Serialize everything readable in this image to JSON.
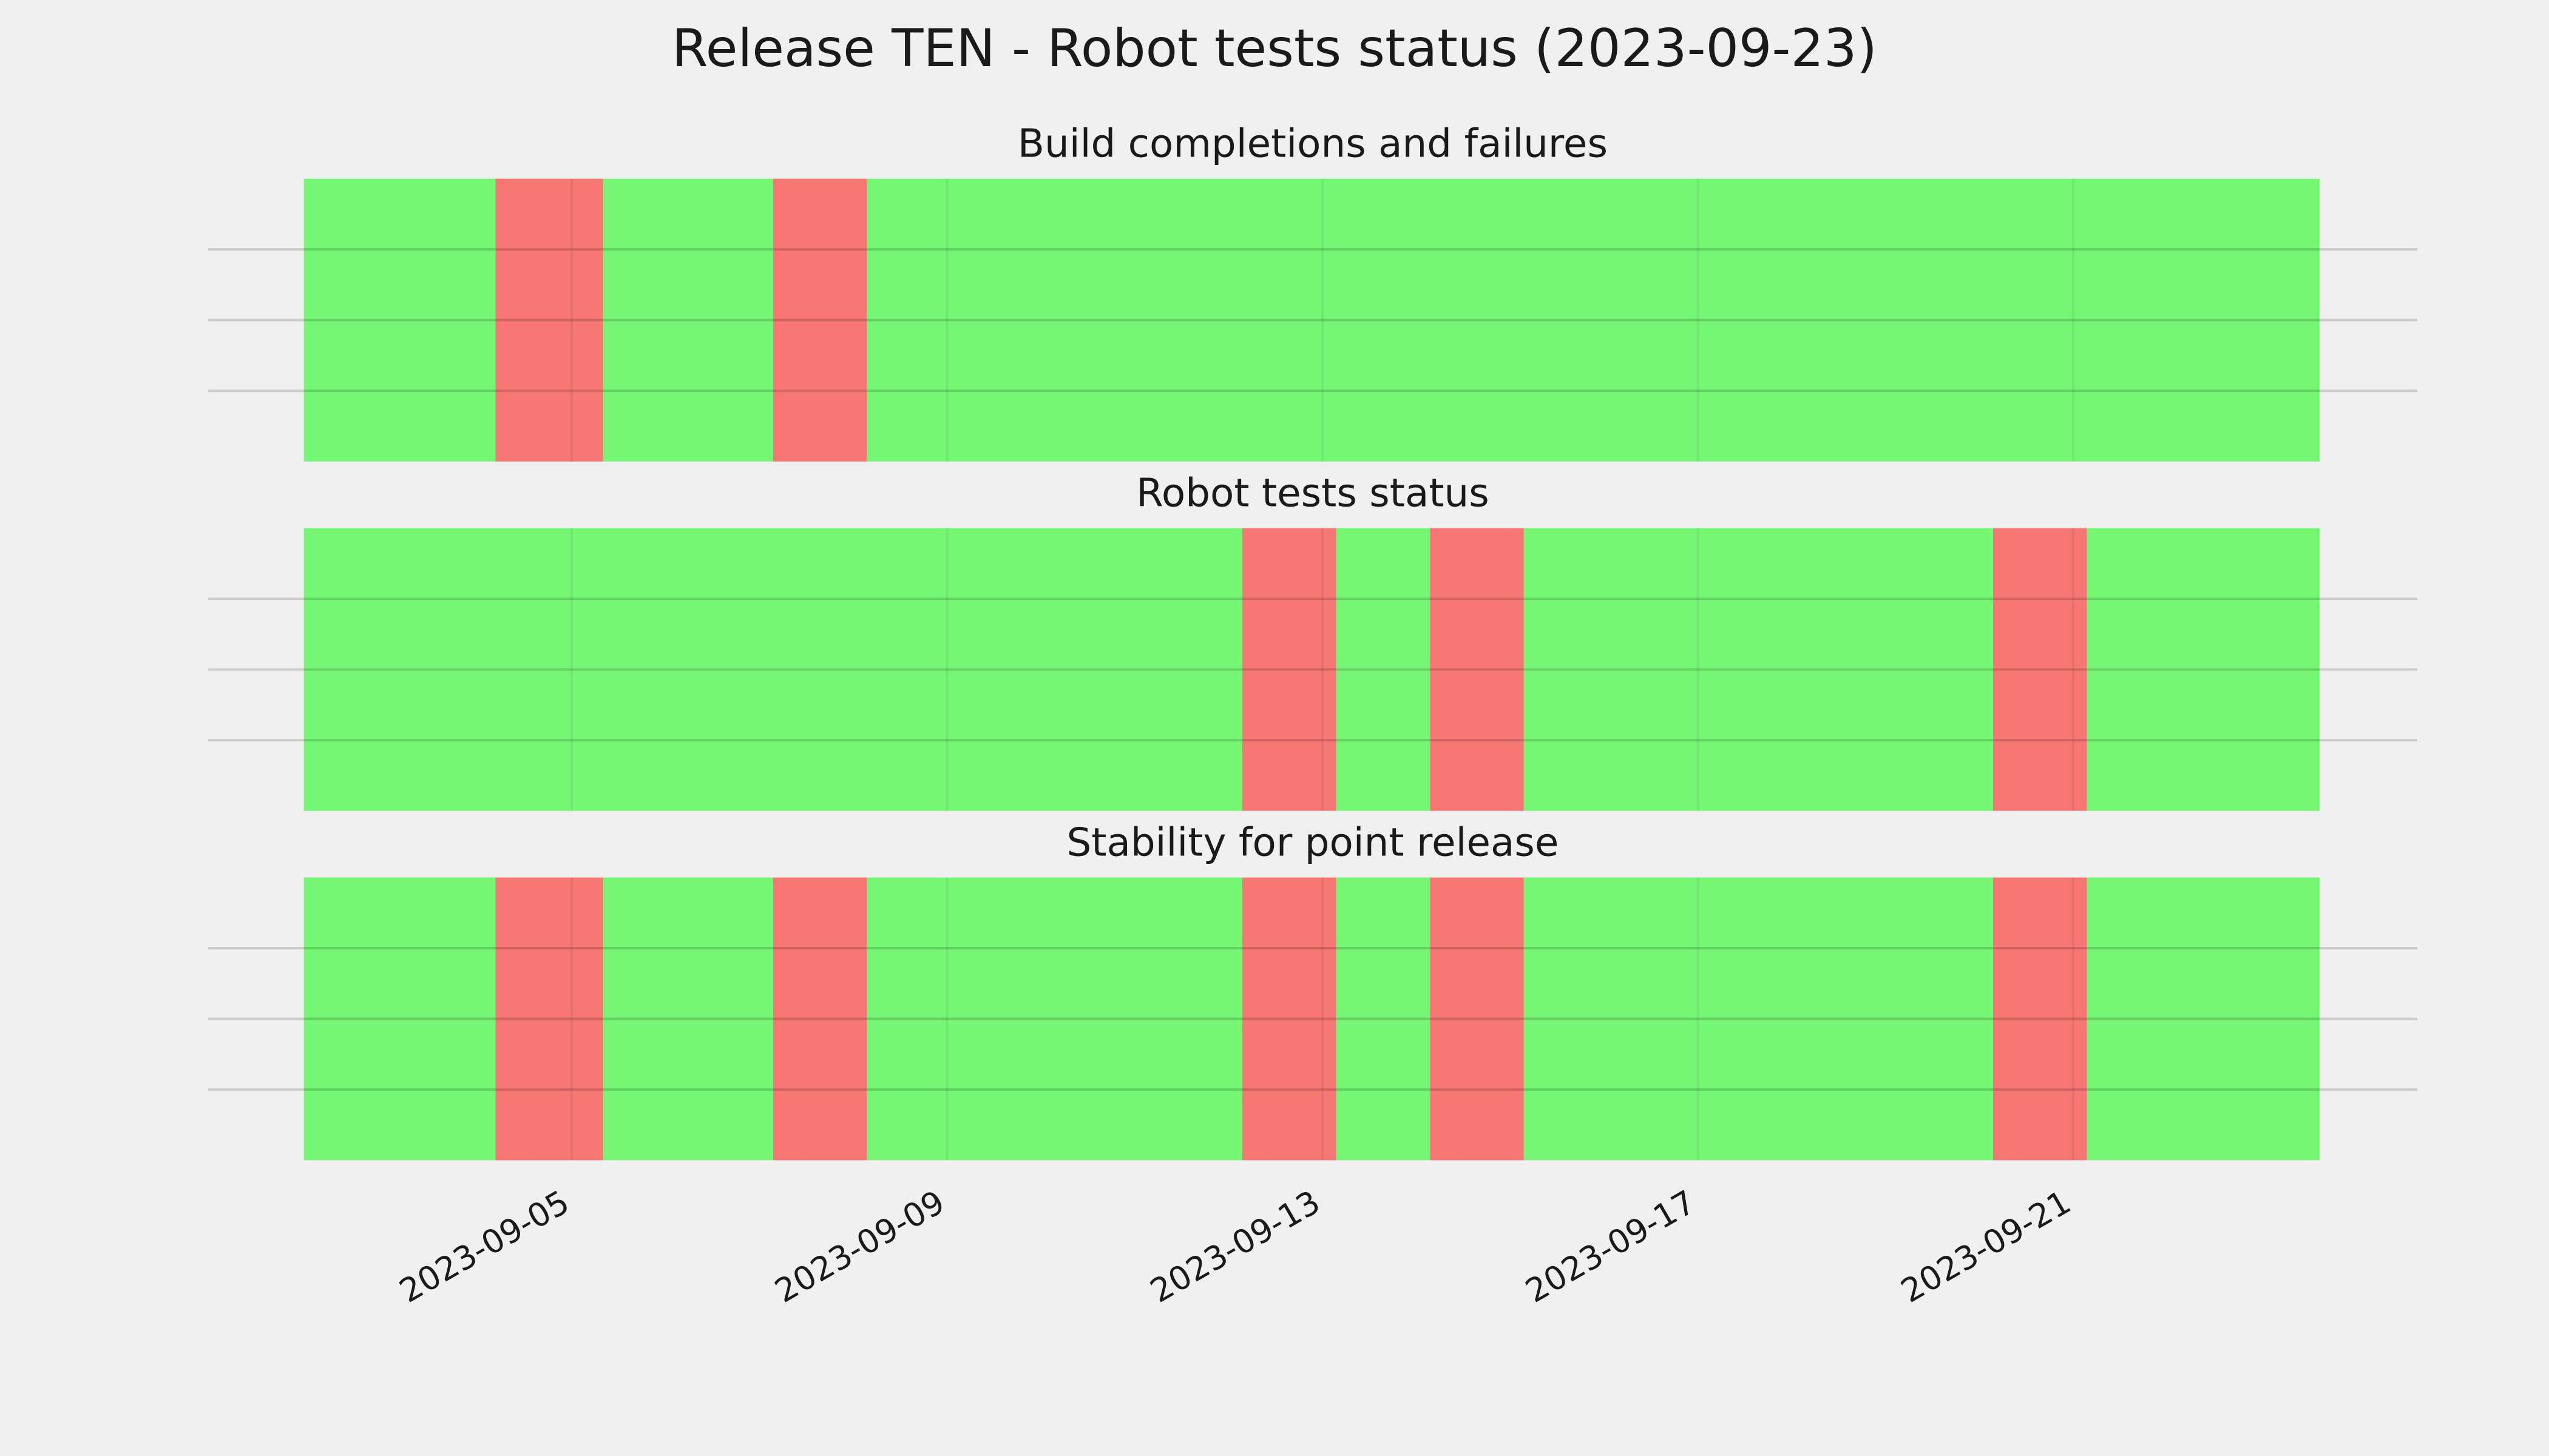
{
  "title": "Release TEN - Robot tests status (2023-09-23)",
  "chart_data": [
    {
      "type": "span",
      "title": "Build completions and failures",
      "spans": [
        {
          "start": "2023-09-02 03:30",
          "end": "2023-09-04 04:30",
          "color": "#75f775"
        },
        {
          "start": "2023-09-04 04:30",
          "end": "2023-09-05 08:00",
          "color": "#f77775"
        },
        {
          "start": "2023-09-05 08:00",
          "end": "2023-09-07 03:30",
          "color": "#75f775"
        },
        {
          "start": "2023-09-07 03:30",
          "end": "2023-09-08 03:30",
          "color": "#f77775"
        },
        {
          "start": "2023-09-08 03:30",
          "end": "2023-09-23 15:00",
          "color": "#75f775"
        }
      ],
      "xlim": [
        "2023-09-01 03:00",
        "2023-09-24 16:00"
      ],
      "xticks": [
        "2023-09-05",
        "2023-09-09",
        "2023-09-13",
        "2023-09-17",
        "2023-09-21"
      ],
      "ylim": [
        0,
        1
      ],
      "yticks": [
        0.25,
        0.5,
        0.75
      ],
      "grid": true,
      "tick_labels": false
    },
    {
      "type": "span",
      "title": "Robot tests status",
      "spans": [
        {
          "start": "2023-09-02 03:30",
          "end": "2023-09-12 03:30",
          "color": "#75f775"
        },
        {
          "start": "2023-09-12 03:30",
          "end": "2023-09-13 03:30",
          "color": "#f77775"
        },
        {
          "start": "2023-09-13 03:30",
          "end": "2023-09-14 03:30",
          "color": "#75f775"
        },
        {
          "start": "2023-09-14 03:30",
          "end": "2023-09-15 03:30",
          "color": "#f77775"
        },
        {
          "start": "2023-09-15 03:30",
          "end": "2023-09-20 03:30",
          "color": "#75f775"
        },
        {
          "start": "2023-09-20 03:30",
          "end": "2023-09-21 03:30",
          "color": "#f77775"
        },
        {
          "start": "2023-09-21 03:30",
          "end": "2023-09-23 15:00",
          "color": "#75f775"
        }
      ],
      "xlim": [
        "2023-09-01 03:00",
        "2023-09-24 16:00"
      ],
      "xticks": [
        "2023-09-05",
        "2023-09-09",
        "2023-09-13",
        "2023-09-17",
        "2023-09-21"
      ],
      "ylim": [
        0,
        1
      ],
      "yticks": [
        0.25,
        0.5,
        0.75
      ],
      "grid": true,
      "tick_labels": false
    },
    {
      "type": "span",
      "title": "Stability for point release",
      "spans": [
        {
          "start": "2023-09-02 03:30",
          "end": "2023-09-04 04:30",
          "color": "#75f775"
        },
        {
          "start": "2023-09-04 04:30",
          "end": "2023-09-05 08:00",
          "color": "#f77775"
        },
        {
          "start": "2023-09-05 08:00",
          "end": "2023-09-07 03:30",
          "color": "#75f775"
        },
        {
          "start": "2023-09-07 03:30",
          "end": "2023-09-08 03:30",
          "color": "#f77775"
        },
        {
          "start": "2023-09-08 03:30",
          "end": "2023-09-12 03:30",
          "color": "#75f775"
        },
        {
          "start": "2023-09-12 03:30",
          "end": "2023-09-13 03:30",
          "color": "#f77775"
        },
        {
          "start": "2023-09-13 03:30",
          "end": "2023-09-14 03:30",
          "color": "#75f775"
        },
        {
          "start": "2023-09-14 03:30",
          "end": "2023-09-15 03:30",
          "color": "#f77775"
        },
        {
          "start": "2023-09-15 03:30",
          "end": "2023-09-20 03:30",
          "color": "#75f775"
        },
        {
          "start": "2023-09-20 03:30",
          "end": "2023-09-21 03:30",
          "color": "#f77775"
        },
        {
          "start": "2023-09-21 03:30",
          "end": "2023-09-23 15:00",
          "color": "#75f775"
        }
      ],
      "xlim": [
        "2023-09-01 03:00",
        "2023-09-24 16:00"
      ],
      "xticks": [
        "2023-09-05",
        "2023-09-09",
        "2023-09-13",
        "2023-09-17",
        "2023-09-21"
      ],
      "ylim": [
        0,
        1
      ],
      "yticks": [
        0.25,
        0.5,
        0.75
      ],
      "grid": true,
      "tick_labels": true
    }
  ]
}
